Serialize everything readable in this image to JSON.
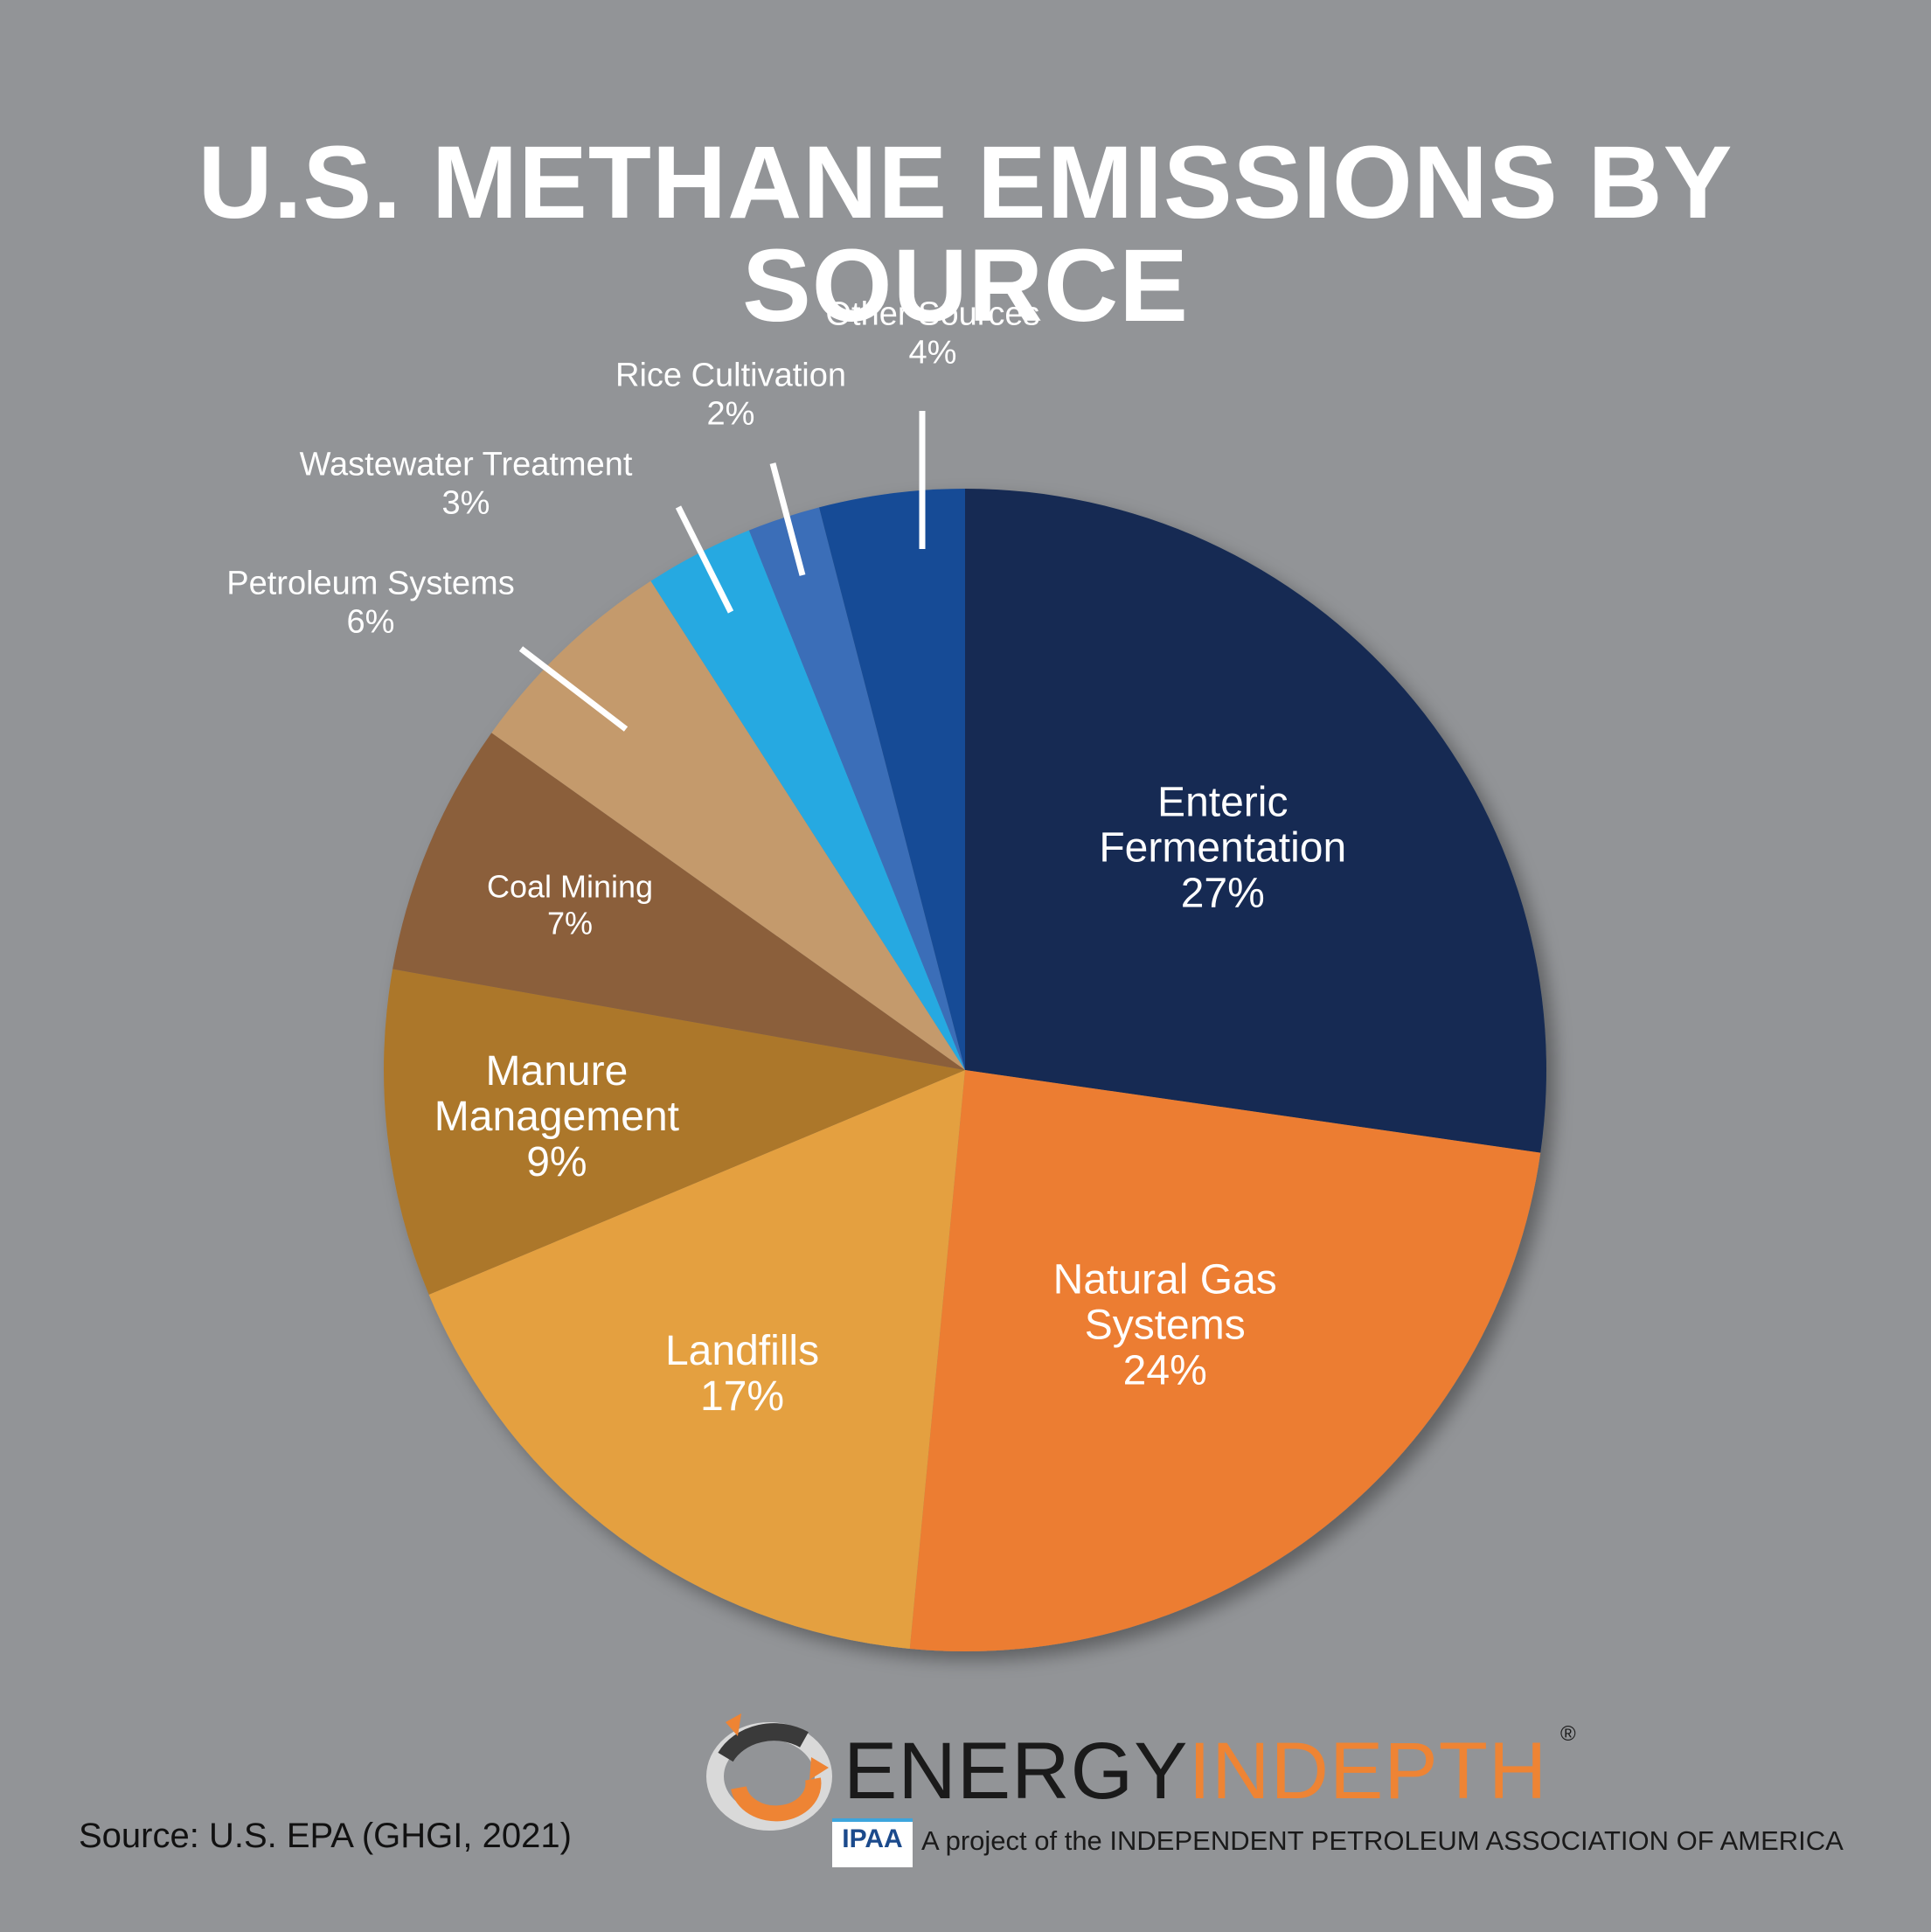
{
  "title": "U.S. METHANE EMISSIONS BY SOURCE",
  "source": "Source: U.S. EPA (GHGI, 2021)",
  "brand": {
    "name_part1": "ENERGY",
    "name_part2": "INDEPTH",
    "registered": "®",
    "ipaa_logo_text": "IPAA",
    "tagline": "A project of the INDEPENDENT PETROLEUM ASSOCIATION OF AMERICA"
  },
  "chart_data": {
    "type": "pie",
    "title": "U.S. METHANE EMISSIONS BY SOURCE",
    "slices": [
      {
        "label": [
          "Enteric",
          "Fermentation"
        ],
        "value": 27,
        "value_label": "27%",
        "color": "#142b52"
      },
      {
        "label": [
          "Natural Gas",
          "Systems"
        ],
        "value": 24,
        "value_label": "24%",
        "color": "#ec7d31"
      },
      {
        "label": [
          "Landfills"
        ],
        "value": 17,
        "value_label": "17%",
        "color": "#e4a03f"
      },
      {
        "label": [
          "Manure",
          "Management"
        ],
        "value": 9,
        "value_label": "9%",
        "color": "#ac772c"
      },
      {
        "label": [
          "Coal Mining"
        ],
        "value": 7,
        "value_label": "7%",
        "color": "#8b5e3b"
      },
      {
        "label": [
          "Petroleum Systems"
        ],
        "value": 6,
        "value_label": "6%",
        "color": "#c49a6c"
      },
      {
        "label": [
          "Wastewater Treatment"
        ],
        "value": 3,
        "value_label": "3%",
        "color": "#27a9e1"
      },
      {
        "label": [
          "Rice Cultivation"
        ],
        "value": 2,
        "value_label": "2%",
        "color": "#3a6eb8"
      },
      {
        "label": [
          "Other Sources"
        ],
        "value": 4,
        "value_label": "4%",
        "color": "#194c96"
      }
    ]
  }
}
